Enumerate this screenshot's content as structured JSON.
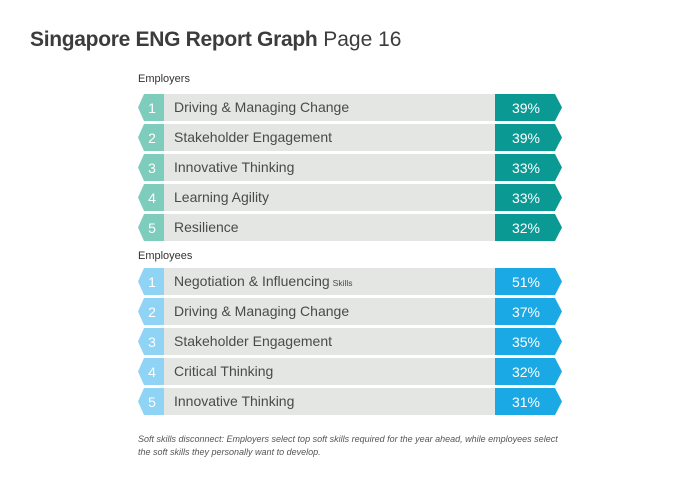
{
  "page_title": {
    "bold": "Singapore ENG Report Graph",
    "rest": "Page 16"
  },
  "colors": {
    "employers_num": "#7dccbc",
    "employers_pct": "#0a9a93",
    "employees_num": "#8fd3f5",
    "employees_pct": "#1aa9e4",
    "bar_bg": "#e3e6e3"
  },
  "chart_data": {
    "type": "bar",
    "groups": [
      {
        "name": "Employers",
        "items": [
          {
            "rank": "1",
            "label": "Driving & Managing Change",
            "suffix": "",
            "value": 39,
            "display": "39%"
          },
          {
            "rank": "2",
            "label": "Stakeholder Engagement",
            "suffix": "",
            "value": 39,
            "display": "39%"
          },
          {
            "rank": "3",
            "label": "Innovative Thinking",
            "suffix": "",
            "value": 33,
            "display": "33%"
          },
          {
            "rank": "4",
            "label": "Learning Agility",
            "suffix": "",
            "value": 33,
            "display": "33%"
          },
          {
            "rank": "5",
            "label": "Resilience",
            "suffix": "",
            "value": 32,
            "display": "32%"
          }
        ]
      },
      {
        "name": "Employees",
        "items": [
          {
            "rank": "1",
            "label": "Negotiation & Influencing",
            "suffix": "Skills",
            "value": 51,
            "display": "51%"
          },
          {
            "rank": "2",
            "label": "Driving & Managing Change",
            "suffix": "",
            "value": 37,
            "display": "37%"
          },
          {
            "rank": "3",
            "label": "Stakeholder Engagement",
            "suffix": "",
            "value": 35,
            "display": "35%"
          },
          {
            "rank": "4",
            "label": "Critical Thinking",
            "suffix": "",
            "value": 32,
            "display": "32%"
          },
          {
            "rank": "5",
            "label": "Innovative Thinking",
            "suffix": "",
            "value": 31,
            "display": "31%"
          }
        ]
      }
    ]
  },
  "footnote": "Soft skills disconnect: Employers select top soft skills required for the year ahead, while employees select the soft skills they personally want to develop."
}
